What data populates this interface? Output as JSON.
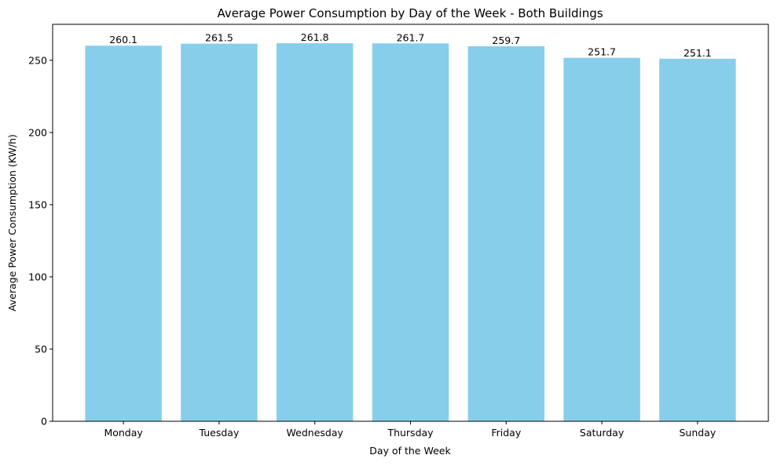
{
  "chart_data": {
    "type": "bar",
    "title": "Average Power Consumption by Day of the Week - Both Buildings",
    "xlabel": "Day of the Week",
    "ylabel": "Average Power Consumption (KW/h)",
    "categories": [
      "Monday",
      "Tuesday",
      "Wednesday",
      "Thursday",
      "Friday",
      "Saturday",
      "Sunday"
    ],
    "values": [
      260.1,
      261.5,
      261.8,
      261.7,
      259.7,
      251.7,
      251.1
    ],
    "value_labels": [
      "260.1",
      "261.5",
      "261.8",
      "261.7",
      "259.7",
      "251.7",
      "251.1"
    ],
    "ylim": [
      0,
      274.9
    ],
    "yticks": [
      0,
      50,
      100,
      150,
      200,
      250
    ],
    "ytick_labels": [
      "0",
      "50",
      "100",
      "150",
      "200",
      "250"
    ],
    "bar_color": "#87CEEB",
    "grid": false,
    "legend": "none"
  }
}
